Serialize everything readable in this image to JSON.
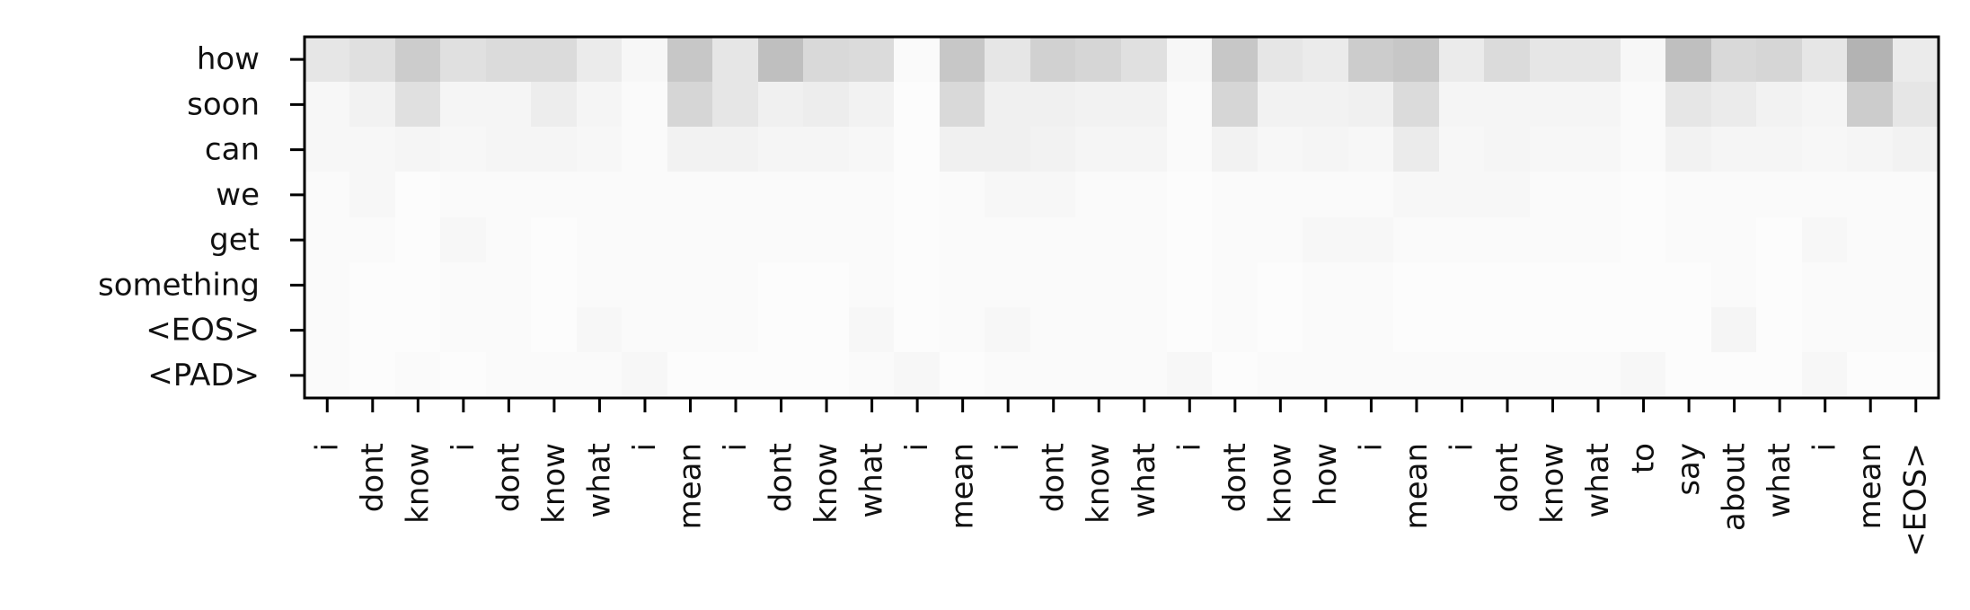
{
  "chart_data": {
    "type": "heatmap",
    "title": "",
    "xlabel": "",
    "ylabel": "",
    "colormap": "Greys",
    "value_range": [
      0,
      1
    ],
    "x_categories": [
      "i",
      "dont",
      "know",
      "i",
      "dont",
      "know",
      "what",
      "i",
      "mean",
      "i",
      "dont",
      "know",
      "what",
      "i",
      "mean",
      "i",
      "dont",
      "know",
      "what",
      "i",
      "dont",
      "know",
      "how",
      "i",
      "mean",
      "i",
      "dont",
      "know",
      "what",
      "to",
      "say",
      "about",
      "what",
      "i",
      "mean",
      "<EOS>"
    ],
    "y_categories": [
      "how",
      "soon",
      "can",
      "we",
      "get",
      "something",
      "<EOS>",
      "<PAD>"
    ],
    "values": [
      [
        0.1,
        0.12,
        0.2,
        0.12,
        0.14,
        0.14,
        0.08,
        0.03,
        0.22,
        0.1,
        0.25,
        0.15,
        0.14,
        0.02,
        0.22,
        0.1,
        0.18,
        0.16,
        0.12,
        0.03,
        0.22,
        0.1,
        0.08,
        0.2,
        0.22,
        0.08,
        0.14,
        0.1,
        0.1,
        0.03,
        0.25,
        0.15,
        0.16,
        0.1,
        0.3,
        0.08
      ],
      [
        0.03,
        0.05,
        0.12,
        0.04,
        0.04,
        0.07,
        0.04,
        0.02,
        0.16,
        0.1,
        0.06,
        0.07,
        0.05,
        0.01,
        0.15,
        0.06,
        0.06,
        0.05,
        0.05,
        0.02,
        0.16,
        0.05,
        0.05,
        0.06,
        0.14,
        0.04,
        0.04,
        0.04,
        0.04,
        0.02,
        0.1,
        0.08,
        0.05,
        0.04,
        0.2,
        0.1
      ],
      [
        0.03,
        0.03,
        0.04,
        0.03,
        0.04,
        0.04,
        0.03,
        0.02,
        0.05,
        0.05,
        0.04,
        0.04,
        0.03,
        0.01,
        0.06,
        0.06,
        0.05,
        0.04,
        0.04,
        0.02,
        0.05,
        0.03,
        0.04,
        0.03,
        0.08,
        0.03,
        0.04,
        0.03,
        0.03,
        0.02,
        0.05,
        0.04,
        0.04,
        0.03,
        0.04,
        0.05
      ],
      [
        0.02,
        0.03,
        0.01,
        0.02,
        0.02,
        0.02,
        0.02,
        0.02,
        0.02,
        0.02,
        0.02,
        0.02,
        0.02,
        0.01,
        0.02,
        0.03,
        0.03,
        0.02,
        0.02,
        0.01,
        0.02,
        0.02,
        0.02,
        0.02,
        0.03,
        0.03,
        0.03,
        0.02,
        0.02,
        0.01,
        0.02,
        0.02,
        0.02,
        0.02,
        0.02,
        0.02
      ],
      [
        0.02,
        0.02,
        0.01,
        0.03,
        0.02,
        0.01,
        0.02,
        0.02,
        0.02,
        0.02,
        0.02,
        0.02,
        0.02,
        0.01,
        0.02,
        0.02,
        0.02,
        0.02,
        0.02,
        0.01,
        0.02,
        0.02,
        0.03,
        0.03,
        0.02,
        0.02,
        0.02,
        0.02,
        0.02,
        0.01,
        0.02,
        0.02,
        0.01,
        0.03,
        0.02,
        0.02
      ],
      [
        0.02,
        0.01,
        0.01,
        0.02,
        0.02,
        0.01,
        0.02,
        0.02,
        0.02,
        0.02,
        0.01,
        0.01,
        0.02,
        0.01,
        0.02,
        0.02,
        0.02,
        0.02,
        0.02,
        0.01,
        0.02,
        0.01,
        0.02,
        0.02,
        0.01,
        0.01,
        0.01,
        0.01,
        0.01,
        0.01,
        0.01,
        0.02,
        0.01,
        0.02,
        0.02,
        0.02
      ],
      [
        0.02,
        0.01,
        0.01,
        0.02,
        0.02,
        0.01,
        0.03,
        0.02,
        0.02,
        0.02,
        0.01,
        0.01,
        0.03,
        0.01,
        0.02,
        0.03,
        0.02,
        0.02,
        0.02,
        0.01,
        0.02,
        0.01,
        0.02,
        0.02,
        0.01,
        0.01,
        0.01,
        0.01,
        0.01,
        0.01,
        0.01,
        0.04,
        0.01,
        0.02,
        0.02,
        0.02
      ],
      [
        0.02,
        0.01,
        0.02,
        0.01,
        0.02,
        0.02,
        0.02,
        0.03,
        0.01,
        0.01,
        0.01,
        0.01,
        0.02,
        0.03,
        0.01,
        0.02,
        0.02,
        0.02,
        0.02,
        0.03,
        0.01,
        0.02,
        0.02,
        0.02,
        0.02,
        0.02,
        0.02,
        0.02,
        0.02,
        0.03,
        0.01,
        0.01,
        0.01,
        0.03,
        0.01,
        0.01
      ]
    ]
  }
}
